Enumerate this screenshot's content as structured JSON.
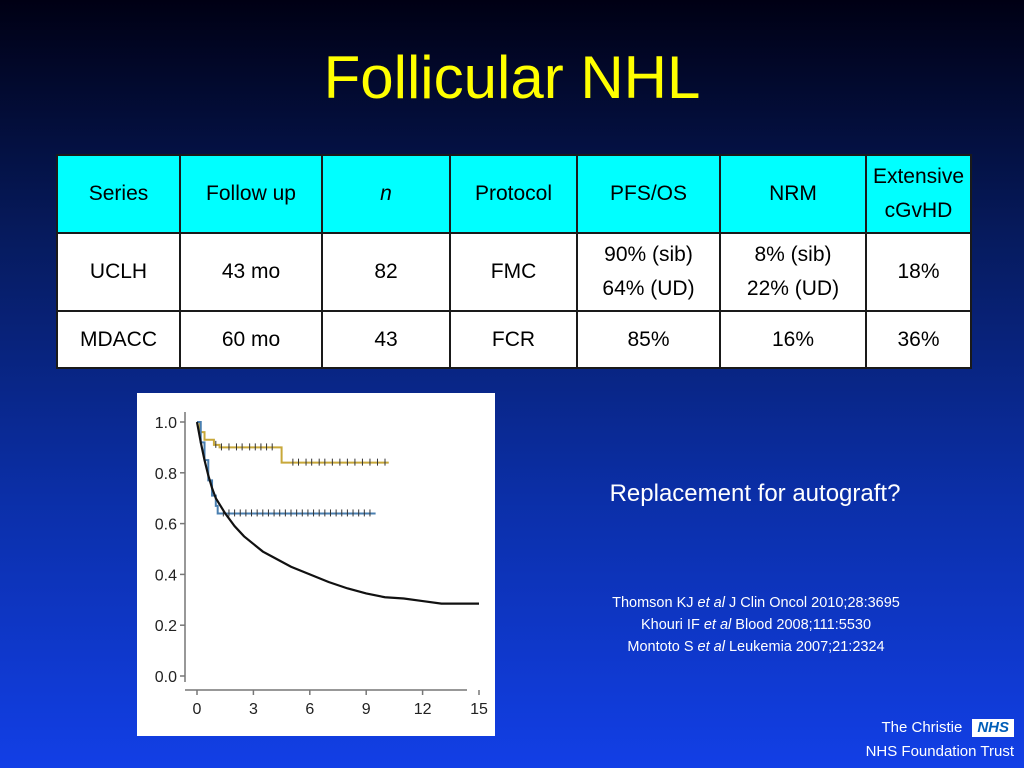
{
  "slide": {
    "title": "Follicular NHL",
    "question": "Replacement for autograft?",
    "references": [
      {
        "author": "Thomson KJ",
        "etal": "et al",
        "source": "J Clin Oncol 2010;28:3695"
      },
      {
        "author": "Khouri IF",
        "etal": "et al",
        "source": "Blood 2008;111:5530"
      },
      {
        "author": "Montoto S",
        "etal": "et al",
        "source": "Leukemia 2007;21:2324"
      }
    ],
    "footer": {
      "org_line1": "The Christie",
      "org_line2": "NHS Foundation Trust",
      "logo_text": "NHS"
    }
  },
  "table": {
    "headers": [
      "Series",
      "Follow up",
      "n",
      "Protocol",
      "PFS/OS",
      "NRM",
      "Extensive",
      "cGvHD"
    ],
    "rows": [
      {
        "series": "UCLH",
        "follow_up": "43 mo",
        "n": "82",
        "protocol": "FMC",
        "pfs_os_1": "90% (sib)",
        "pfs_os_2": "64% (UD)",
        "nrm_1": "8% (sib)",
        "nrm_2": "22% (UD)",
        "cgvhd": "18%"
      },
      {
        "series": "MDACC",
        "follow_up": "60 mo",
        "n": "43",
        "protocol": "FCR",
        "pfs_os": "85%",
        "nrm": "16%",
        "cgvhd": "36%"
      }
    ]
  },
  "chart_data": {
    "type": "line",
    "title": "",
    "xlabel": "",
    "ylabel": "",
    "xlim": [
      0,
      15
    ],
    "ylim": [
      0,
      1.0
    ],
    "x_ticks": [
      "0",
      "3",
      "6",
      "9",
      "12",
      "15"
    ],
    "y_ticks": [
      "1.0",
      "0.8",
      "0.6",
      "0.4",
      "0.2",
      "0.0"
    ],
    "grid": false,
    "series": [
      {
        "color": "#c8a83a",
        "step": true,
        "points": [
          [
            0,
            1.0
          ],
          [
            0.15,
            0.96
          ],
          [
            0.4,
            0.93
          ],
          [
            0.9,
            0.91
          ],
          [
            1.2,
            0.9
          ],
          [
            4.5,
            0.9
          ],
          [
            4.5,
            0.84
          ],
          [
            10.2,
            0.84
          ]
        ],
        "censor_x": [
          1.0,
          1.3,
          1.7,
          2.1,
          2.4,
          2.8,
          3.1,
          3.4,
          3.7,
          4.0,
          5.1,
          5.4,
          5.8,
          6.1,
          6.5,
          6.8,
          7.2,
          7.6,
          8.0,
          8.4,
          8.8,
          9.2,
          9.6,
          10.0
        ]
      },
      {
        "color": "#4a7fb0",
        "step": true,
        "points": [
          [
            0,
            1.0
          ],
          [
            0.2,
            0.92
          ],
          [
            0.4,
            0.85
          ],
          [
            0.6,
            0.77
          ],
          [
            0.8,
            0.71
          ],
          [
            1.0,
            0.67
          ],
          [
            1.1,
            0.64
          ],
          [
            9.5,
            0.64
          ]
        ],
        "censor_x": [
          1.4,
          1.7,
          2.0,
          2.3,
          2.6,
          2.9,
          3.2,
          3.5,
          3.8,
          4.1,
          4.4,
          4.7,
          5.0,
          5.3,
          5.6,
          5.9,
          6.2,
          6.5,
          6.8,
          7.1,
          7.4,
          7.7,
          8.0,
          8.3,
          8.6,
          8.9,
          9.2
        ]
      },
      {
        "color": "#111111",
        "step": false,
        "points": [
          [
            0,
            1.0
          ],
          [
            0.2,
            0.92
          ],
          [
            0.4,
            0.85
          ],
          [
            0.6,
            0.79
          ],
          [
            0.8,
            0.74
          ],
          [
            1.0,
            0.7
          ],
          [
            1.5,
            0.64
          ],
          [
            2.0,
            0.59
          ],
          [
            2.5,
            0.55
          ],
          [
            3.0,
            0.52
          ],
          [
            3.5,
            0.49
          ],
          [
            4.0,
            0.47
          ],
          [
            5.0,
            0.43
          ],
          [
            6.0,
            0.4
          ],
          [
            7.0,
            0.37
          ],
          [
            8.0,
            0.345
          ],
          [
            9.0,
            0.325
          ],
          [
            10.0,
            0.31
          ],
          [
            11.0,
            0.305
          ],
          [
            12.0,
            0.295
          ],
          [
            13.0,
            0.285
          ],
          [
            15.0,
            0.285
          ]
        ],
        "censor_x": []
      }
    ]
  }
}
